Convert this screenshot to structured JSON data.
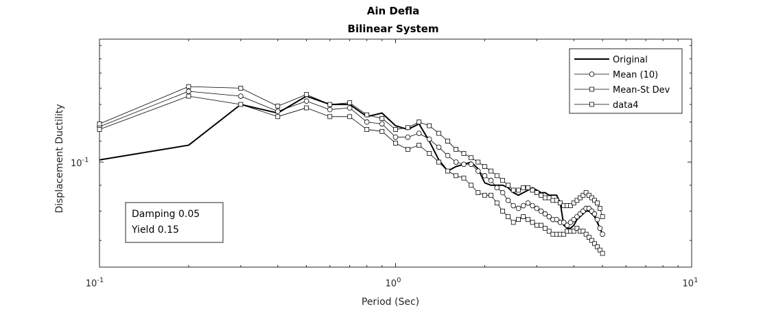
{
  "chart_data": {
    "type": "line",
    "title": "Ain Defla",
    "subtitle": "Bilinear System",
    "xlabel": "Period (Sec)",
    "ylabel": "Displacement Ductility",
    "xscale": "log",
    "yscale": "log",
    "xlim": [
      0.1,
      10
    ],
    "ylim": [
      0.062,
      0.175
    ],
    "x_ticks": [
      {
        "base": "10",
        "exp": "-1",
        "value": 0.1
      },
      {
        "base": "10",
        "exp": "0",
        "value": 1
      },
      {
        "base": "10",
        "exp": "1",
        "value": 10
      }
    ],
    "y_ticks": [
      {
        "base": "10",
        "exp": "-1",
        "value": 0.1
      }
    ],
    "grid": false,
    "legend_position": "top-right",
    "annotation": [
      "Damping 0.05",
      "Yield 0.15"
    ],
    "series": [
      {
        "name": "Original",
        "marker": "none",
        "line_width": "thick",
        "x": [
          0.1,
          0.2,
          0.3,
          0.4,
          0.5,
          0.6,
          0.7,
          0.8,
          0.9,
          1.0,
          1.1,
          1.2,
          1.3,
          1.4,
          1.5,
          1.6,
          1.7,
          1.8,
          1.9,
          2.0,
          2.1,
          2.2,
          2.3,
          2.4,
          2.5,
          2.6,
          2.7,
          2.8,
          2.9,
          3.0,
          3.1,
          3.2,
          3.3,
          3.4,
          3.5,
          3.6,
          3.7,
          3.8,
          3.9,
          4.0,
          4.1,
          4.2,
          4.3,
          4.4,
          4.5,
          4.6,
          4.7,
          4.8,
          4.9,
          5.0
        ],
        "y": [
          0.101,
          0.108,
          0.13,
          0.125,
          0.135,
          0.13,
          0.13,
          0.123,
          0.125,
          0.118,
          0.116,
          0.119,
          0.11,
          0.101,
          0.096,
          0.098,
          0.099,
          0.1,
          0.097,
          0.091,
          0.09,
          0.09,
          0.09,
          0.089,
          0.087,
          0.086,
          0.087,
          0.088,
          0.089,
          0.088,
          0.087,
          0.087,
          0.086,
          0.086,
          0.086,
          0.083,
          0.075,
          0.074,
          0.074,
          0.075,
          0.077,
          0.078,
          0.079,
          0.08,
          0.08,
          0.079,
          0.078,
          0.076,
          0.074,
          0.072
        ]
      },
      {
        "name": "Mean (10)",
        "marker": "circle",
        "line_width": "thin",
        "x": [
          0.1,
          0.2,
          0.3,
          0.4,
          0.5,
          0.6,
          0.7,
          0.8,
          0.9,
          1.0,
          1.1,
          1.2,
          1.3,
          1.4,
          1.5,
          1.6,
          1.7,
          1.8,
          1.9,
          2.0,
          2.1,
          2.2,
          2.3,
          2.4,
          2.5,
          2.6,
          2.7,
          2.8,
          2.9,
          3.0,
          3.1,
          3.2,
          3.3,
          3.4,
          3.5,
          3.6,
          3.7,
          3.8,
          3.9,
          4.0,
          4.1,
          4.2,
          4.3,
          4.4,
          4.5,
          4.6,
          4.7,
          4.8,
          4.9,
          5.0
        ],
        "y": [
          0.1175,
          0.138,
          0.135,
          0.126,
          0.132,
          0.127,
          0.128,
          0.12,
          0.119,
          0.112,
          0.112,
          0.114,
          0.111,
          0.107,
          0.103,
          0.1,
          0.099,
          0.099,
          0.096,
          0.094,
          0.092,
          0.089,
          0.087,
          0.084,
          0.082,
          0.081,
          0.082,
          0.083,
          0.082,
          0.081,
          0.08,
          0.079,
          0.078,
          0.077,
          0.077,
          0.076,
          0.076,
          0.075,
          0.076,
          0.077,
          0.078,
          0.079,
          0.08,
          0.081,
          0.081,
          0.08,
          0.079,
          0.077,
          0.074,
          0.072
        ]
      },
      {
        "name": "Mean-St Dev",
        "marker": "square",
        "line_width": "thin",
        "x": [
          0.1,
          0.2,
          0.3,
          0.4,
          0.5,
          0.6,
          0.7,
          0.8,
          0.9,
          1.0,
          1.1,
          1.2,
          1.3,
          1.4,
          1.5,
          1.6,
          1.7,
          1.8,
          1.9,
          2.0,
          2.1,
          2.2,
          2.3,
          2.4,
          2.5,
          2.6,
          2.7,
          2.8,
          2.9,
          3.0,
          3.1,
          3.2,
          3.3,
          3.4,
          3.5,
          3.6,
          3.7,
          3.8,
          3.9,
          4.0,
          4.1,
          4.2,
          4.3,
          4.4,
          4.5,
          4.6,
          4.7,
          4.8,
          4.9,
          5.0
        ],
        "y": [
          0.116,
          0.135,
          0.13,
          0.123,
          0.128,
          0.123,
          0.123,
          0.116,
          0.115,
          0.109,
          0.106,
          0.108,
          0.104,
          0.1,
          0.096,
          0.094,
          0.093,
          0.09,
          0.087,
          0.086,
          0.086,
          0.083,
          0.08,
          0.078,
          0.076,
          0.077,
          0.078,
          0.077,
          0.076,
          0.075,
          0.075,
          0.074,
          0.073,
          0.072,
          0.072,
          0.072,
          0.072,
          0.073,
          0.073,
          0.073,
          0.074,
          0.073,
          0.073,
          0.072,
          0.071,
          0.07,
          0.069,
          0.068,
          0.067,
          0.066
        ]
      },
      {
        "name": "data4",
        "marker": "square",
        "line_width": "thin",
        "x": [
          0.1,
          0.2,
          0.3,
          0.4,
          0.5,
          0.6,
          0.7,
          0.8,
          0.9,
          1.0,
          1.1,
          1.2,
          1.3,
          1.4,
          1.5,
          1.6,
          1.7,
          1.8,
          1.9,
          2.0,
          2.1,
          2.2,
          2.3,
          2.4,
          2.5,
          2.6,
          2.7,
          2.8,
          2.9,
          3.0,
          3.1,
          3.2,
          3.3,
          3.4,
          3.5,
          3.6,
          3.7,
          3.8,
          3.9,
          4.0,
          4.1,
          4.2,
          4.3,
          4.4,
          4.5,
          4.6,
          4.7,
          4.8,
          4.9,
          5.0
        ],
        "y": [
          0.119,
          0.141,
          0.14,
          0.129,
          0.136,
          0.13,
          0.131,
          0.124,
          0.122,
          0.116,
          0.117,
          0.12,
          0.118,
          0.114,
          0.11,
          0.106,
          0.104,
          0.102,
          0.1,
          0.098,
          0.096,
          0.094,
          0.092,
          0.09,
          0.088,
          0.088,
          0.089,
          0.089,
          0.088,
          0.087,
          0.086,
          0.085,
          0.085,
          0.084,
          0.084,
          0.083,
          0.082,
          0.082,
          0.082,
          0.083,
          0.084,
          0.085,
          0.086,
          0.087,
          0.086,
          0.085,
          0.084,
          0.083,
          0.081,
          0.078
        ]
      }
    ]
  }
}
